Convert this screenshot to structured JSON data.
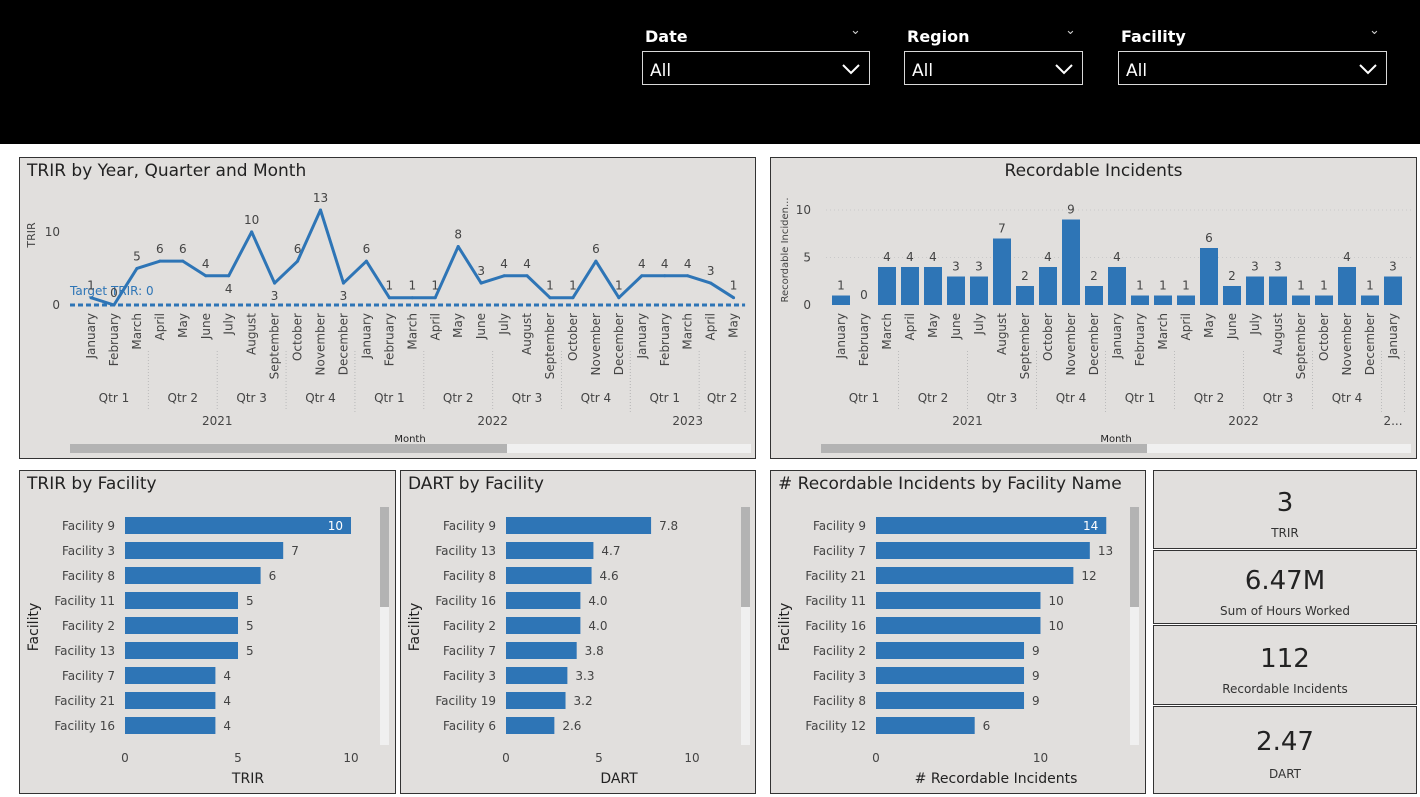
{
  "filters": [
    {
      "label": "Date",
      "value": "All"
    },
    {
      "label": "Region",
      "value": "All"
    },
    {
      "label": "Facility",
      "value": "All"
    }
  ],
  "colors": {
    "accent": "#2e75b6",
    "panel_bg": "#e1dfdd",
    "topbar": "#000000"
  },
  "trir_trend": {
    "title": "TRIR by Year, Quarter and Month",
    "ylabel": "TRIR",
    "xlabel": "Month",
    "yticks": [
      "0",
      "10"
    ],
    "target_label": "Target TRIR: 0",
    "months": [
      "January",
      "February",
      "March",
      "April",
      "May",
      "June",
      "July",
      "August",
      "September",
      "October",
      "November",
      "December",
      "January",
      "February",
      "March",
      "April",
      "May",
      "June",
      "July",
      "August",
      "September",
      "October",
      "November",
      "December",
      "January",
      "February",
      "March",
      "April",
      "May"
    ],
    "values": [
      1,
      0,
      5,
      6,
      6,
      4,
      4,
      10,
      3,
      6,
      13,
      3,
      6,
      1,
      1,
      1,
      8,
      3,
      4,
      4,
      1,
      1,
      6,
      1,
      4,
      4,
      4,
      3,
      1
    ],
    "quarters": [
      {
        "label": "Qtr 1",
        "span": 3
      },
      {
        "label": "Qtr 2",
        "span": 3
      },
      {
        "label": "Qtr 3",
        "span": 3
      },
      {
        "label": "Qtr 4",
        "span": 3
      },
      {
        "label": "Qtr 1",
        "span": 3
      },
      {
        "label": "Qtr 2",
        "span": 3
      },
      {
        "label": "Qtr 3",
        "span": 3
      },
      {
        "label": "Qtr 4",
        "span": 3
      },
      {
        "label": "Qtr 1",
        "span": 3
      },
      {
        "label": "Qtr 2",
        "span": 2
      }
    ],
    "years": [
      {
        "label": "2021",
        "span": 12
      },
      {
        "label": "2022",
        "span": 12
      },
      {
        "label": "2023",
        "span": 5
      }
    ]
  },
  "recordable_trend": {
    "title": "Recordable Incidents",
    "ylabel": "Recordable Inciden...",
    "xlabel": "Month",
    "yticks": [
      "0",
      "5",
      "10"
    ],
    "months": [
      "January",
      "February",
      "March",
      "April",
      "May",
      "June",
      "July",
      "August",
      "September",
      "October",
      "November",
      "December",
      "January",
      "February",
      "March",
      "April",
      "May",
      "June",
      "July",
      "August",
      "September",
      "October",
      "November",
      "December",
      "January"
    ],
    "values": [
      1,
      0,
      4,
      4,
      4,
      3,
      3,
      7,
      2,
      4,
      9,
      2,
      4,
      1,
      1,
      1,
      6,
      2,
      3,
      3,
      1,
      1,
      4,
      1,
      3
    ],
    "quarters": [
      {
        "label": "Qtr 1",
        "span": 3
      },
      {
        "label": "Qtr 2",
        "span": 3
      },
      {
        "label": "Qtr 3",
        "span": 3
      },
      {
        "label": "Qtr 4",
        "span": 3
      },
      {
        "label": "Qtr 1",
        "span": 3
      },
      {
        "label": "Qtr 2",
        "span": 3
      },
      {
        "label": "Qtr 3",
        "span": 3
      },
      {
        "label": "Qtr 4",
        "span": 3
      },
      {
        "label": "",
        "span": 1
      }
    ],
    "years": [
      {
        "label": "2021",
        "span": 12
      },
      {
        "label": "2022",
        "span": 12
      },
      {
        "label": "2...",
        "span": 1
      }
    ]
  },
  "trir_facility": {
    "title": "TRIR by Facility",
    "ylabel": "Facility",
    "xlabel": "TRIR",
    "xticks": [
      "0",
      "5",
      "10"
    ],
    "categories": [
      "Facility 9",
      "Facility 3",
      "Facility 8",
      "Facility 11",
      "Facility 2",
      "Facility 13",
      "Facility 7",
      "Facility 21",
      "Facility 16"
    ],
    "values": [
      10,
      7,
      6,
      5,
      5,
      5,
      4,
      4,
      4
    ],
    "labels": [
      "10",
      "7",
      "6",
      "5",
      "5",
      "5",
      "4",
      "4",
      "4"
    ]
  },
  "dart_facility": {
    "title": "DART by Facility",
    "ylabel": "Facility",
    "xlabel": "DART",
    "xticks": [
      "0",
      "5",
      "10"
    ],
    "categories": [
      "Facility 9",
      "Facility 13",
      "Facility 8",
      "Facility 16",
      "Facility 2",
      "Facility 7",
      "Facility 3",
      "Facility 19",
      "Facility 6"
    ],
    "values": [
      7.8,
      4.7,
      4.6,
      4.0,
      4.0,
      3.8,
      3.3,
      3.2,
      2.6
    ],
    "labels": [
      "7.8",
      "4.7",
      "4.6",
      "4.0",
      "4.0",
      "3.8",
      "3.3",
      "3.2",
      "2.6"
    ]
  },
  "incidents_facility": {
    "title": "# Recordable Incidents by Facility Name",
    "ylabel": "Facility",
    "xlabel": "# Recordable Incidents",
    "xticks": [
      "0",
      "10"
    ],
    "categories": [
      "Facility 9",
      "Facility 7",
      "Facility 21",
      "Facility 11",
      "Facility 16",
      "Facility 2",
      "Facility 3",
      "Facility 8",
      "Facility 12"
    ],
    "values": [
      14,
      13,
      12,
      10,
      10,
      9,
      9,
      9,
      6
    ],
    "labels": [
      "14",
      "13",
      "12",
      "10",
      "10",
      "9",
      "9",
      "9",
      "6"
    ]
  },
  "kpis": [
    {
      "value": "3",
      "label": "TRIR"
    },
    {
      "value": "6.47M",
      "label": "Sum of  Hours Worked"
    },
    {
      "value": "112",
      "label": "Recordable Incidents"
    },
    {
      "value": "2.47",
      "label": "DART"
    }
  ],
  "chart_data": [
    {
      "type": "line",
      "title": "TRIR by Year, Quarter and Month",
      "xlabel": "Month",
      "ylabel": "TRIR",
      "x": [
        "January 2021",
        "February 2021",
        "March 2021",
        "April 2021",
        "May 2021",
        "June 2021",
        "July 2021",
        "August 2021",
        "September 2021",
        "October 2021",
        "November 2021",
        "December 2021",
        "January 2022",
        "February 2022",
        "March 2022",
        "April 2022",
        "May 2022",
        "June 2022",
        "July 2022",
        "August 2022",
        "September 2022",
        "October 2022",
        "November 2022",
        "December 2022",
        "January 2023",
        "February 2023",
        "March 2023",
        "April 2023",
        "May 2023"
      ],
      "series": [
        {
          "name": "TRIR",
          "values": [
            1,
            0,
            5,
            6,
            6,
            4,
            4,
            10,
            3,
            6,
            13,
            3,
            6,
            1,
            1,
            1,
            8,
            3,
            4,
            4,
            1,
            1,
            6,
            1,
            4,
            4,
            4,
            3,
            1
          ]
        }
      ],
      "target": 0,
      "ylim": [
        0,
        13
      ]
    },
    {
      "type": "bar",
      "title": "Recordable Incidents",
      "xlabel": "Month",
      "ylabel": "Recordable Inciden...",
      "categories": [
        "January 2021",
        "February 2021",
        "March 2021",
        "April 2021",
        "May 2021",
        "June 2021",
        "July 2021",
        "August 2021",
        "September 2021",
        "October 2021",
        "November 2021",
        "December 2021",
        "January 2022",
        "February 2022",
        "March 2022",
        "April 2022",
        "May 2022",
        "June 2022",
        "July 2022",
        "August 2022",
        "September 2022",
        "October 2022",
        "November 2022",
        "December 2022",
        "January 2023"
      ],
      "values": [
        1,
        0,
        4,
        4,
        4,
        3,
        3,
        7,
        2,
        4,
        9,
        2,
        4,
        1,
        1,
        1,
        6,
        2,
        3,
        3,
        1,
        1,
        4,
        1,
        3
      ],
      "ylim": [
        0,
        10
      ]
    },
    {
      "type": "bar",
      "title": "TRIR by Facility",
      "xlabel": "TRIR",
      "ylabel": "Facility",
      "categories": [
        "Facility 9",
        "Facility 3",
        "Facility 8",
        "Facility 11",
        "Facility 2",
        "Facility 13",
        "Facility 7",
        "Facility 21",
        "Facility 16"
      ],
      "values": [
        10,
        7,
        6,
        5,
        5,
        5,
        4,
        4,
        4
      ],
      "xlim": [
        0,
        10
      ]
    },
    {
      "type": "bar",
      "title": "DART by Facility",
      "xlabel": "DART",
      "ylabel": "Facility",
      "categories": [
        "Facility 9",
        "Facility 13",
        "Facility 8",
        "Facility 16",
        "Facility 2",
        "Facility 7",
        "Facility 3",
        "Facility 19",
        "Facility 6"
      ],
      "values": [
        7.8,
        4.7,
        4.6,
        4.0,
        4.0,
        3.8,
        3.3,
        3.2,
        2.6
      ],
      "xlim": [
        0,
        10
      ]
    },
    {
      "type": "bar",
      "title": "# Recordable Incidents by Facility Name",
      "xlabel": "# Recordable Incidents",
      "ylabel": "Facility",
      "categories": [
        "Facility 9",
        "Facility 7",
        "Facility 21",
        "Facility 11",
        "Facility 16",
        "Facility 2",
        "Facility 3",
        "Facility 8",
        "Facility 12"
      ],
      "values": [
        14,
        13,
        12,
        10,
        10,
        9,
        9,
        9,
        6
      ],
      "xlim": [
        0,
        15
      ]
    }
  ]
}
